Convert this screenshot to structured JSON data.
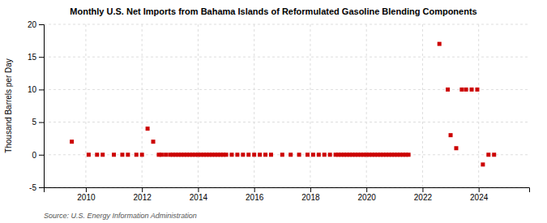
{
  "chart_data": {
    "type": "scatter",
    "title": "Monthly U.S. Net Imports from Bahama Islands of Reformulated Gasoline Blending Components",
    "y_label": "Thousand Barrels per Day",
    "annotations": [
      "Source: U.S. Energy Information Administration"
    ],
    "color": "#cc0000",
    "marker": "square",
    "grid": true,
    "xlim": [
      2008.5,
      2025.8
    ],
    "xticks": [
      2010,
      2012,
      2014,
      2016,
      2018,
      2020,
      2022,
      2024
    ],
    "ylim": [
      -5,
      20
    ],
    "yticks": [
      -5,
      0,
      5,
      10,
      15,
      20
    ],
    "x": [
      2009.5,
      2010.1,
      2010.4,
      2010.6,
      2011.0,
      2011.3,
      2011.5,
      2011.8,
      2012.0,
      2012.2,
      2012.4,
      2012.6,
      2012.7,
      2012.85,
      2013.0,
      2013.1,
      2013.2,
      2013.3,
      2013.4,
      2013.5,
      2013.6,
      2013.7,
      2013.8,
      2013.9,
      2014.0,
      2014.1,
      2014.2,
      2014.3,
      2014.4,
      2014.5,
      2014.6,
      2014.7,
      2014.8,
      2014.9,
      2015.0,
      2015.2,
      2015.4,
      2015.6,
      2015.8,
      2016.0,
      2016.2,
      2016.4,
      2016.6,
      2017.0,
      2017.3,
      2017.6,
      2017.9,
      2018.1,
      2018.3,
      2018.5,
      2018.7,
      2018.9,
      2019.0,
      2019.1,
      2019.2,
      2019.3,
      2019.4,
      2019.5,
      2019.6,
      2019.7,
      2019.8,
      2019.9,
      2020.0,
      2020.1,
      2020.2,
      2020.3,
      2020.4,
      2020.5,
      2020.6,
      2020.7,
      2020.8,
      2020.9,
      2021.0,
      2021.1,
      2021.2,
      2021.3,
      2021.4,
      2021.5,
      2022.6,
      2022.9,
      2023.0,
      2023.2,
      2023.4,
      2023.55,
      2023.75,
      2023.95,
      2024.15,
      2024.35,
      2024.55
    ],
    "values": [
      2.0,
      0.0,
      0.0,
      0.0,
      0.0,
      0.0,
      0.0,
      0.0,
      0.0,
      4.0,
      2.0,
      0.0,
      0.0,
      0.0,
      0.0,
      0.0,
      0.0,
      0.0,
      0.0,
      0.0,
      0.0,
      0.0,
      0.0,
      0.0,
      0.0,
      0.0,
      0.0,
      0.0,
      0.0,
      0.0,
      0.0,
      0.0,
      0.0,
      0.0,
      0.0,
      0.0,
      0.0,
      0.0,
      0.0,
      0.0,
      0.0,
      0.0,
      0.0,
      0.0,
      0.0,
      0.0,
      0.0,
      0.0,
      0.0,
      0.0,
      0.0,
      0.0,
      0.0,
      0.0,
      0.0,
      0.0,
      0.0,
      0.0,
      0.0,
      0.0,
      0.0,
      0.0,
      0.0,
      0.0,
      0.0,
      0.0,
      0.0,
      0.0,
      0.0,
      0.0,
      0.0,
      0.0,
      0.0,
      0.0,
      0.0,
      0.0,
      0.0,
      0.0,
      17.0,
      10.0,
      3.0,
      1.0,
      10.0,
      10.0,
      10.0,
      10.0,
      -1.5,
      0.0,
      0.0
    ]
  }
}
